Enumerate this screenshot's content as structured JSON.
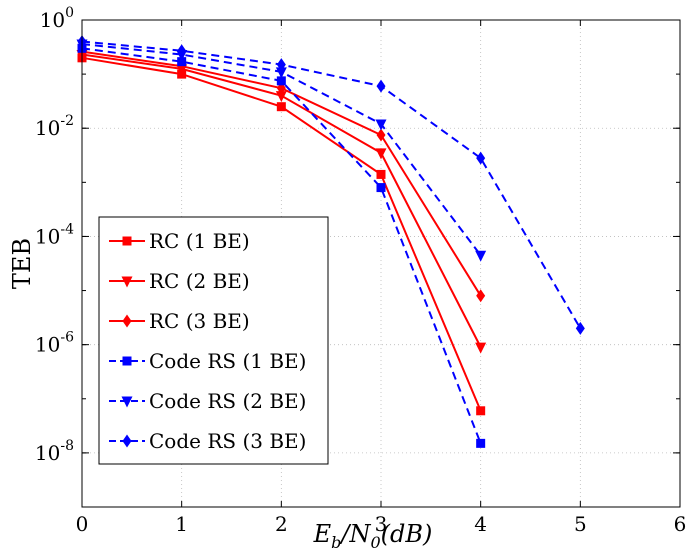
{
  "chart_data": {
    "type": "line",
    "xlabel": "E_b/N_0(dB)",
    "ylabel": "TEB",
    "x_scale": "linear",
    "y_scale": "log",
    "xlim": [
      0,
      6
    ],
    "ylim": [
      1e-09,
      1
    ],
    "x_ticks": [
      "0",
      "1",
      "2",
      "3",
      "4",
      "5",
      "6"
    ],
    "y_ticks": [
      {
        "base": "10",
        "exp": "0",
        "value": 1
      },
      {
        "base": "10",
        "exp": "-2",
        "value": 0.01
      },
      {
        "base": "10",
        "exp": "-4",
        "value": 0.0001
      },
      {
        "base": "10",
        "exp": "-6",
        "value": 1e-06
      },
      {
        "base": "10",
        "exp": "-8",
        "value": 1e-08
      }
    ],
    "grid": true,
    "legend_position": "lower-left",
    "series": [
      {
        "name": "RC (1 BE)",
        "color": "#ff0000",
        "marker": "square",
        "dash": "solid",
        "x": [
          0,
          1,
          2,
          3,
          4
        ],
        "y": [
          0.2,
          0.1,
          0.025,
          0.0014,
          6e-08
        ]
      },
      {
        "name": "RC (2 BE)",
        "color": "#ff0000",
        "marker": "triangle-down",
        "dash": "solid",
        "x": [
          0,
          1,
          2,
          3,
          4
        ],
        "y": [
          0.23,
          0.125,
          0.04,
          0.0035,
          9e-07
        ]
      },
      {
        "name": "RC (3 BE)",
        "color": "#ff0000",
        "marker": "diamond",
        "dash": "solid",
        "x": [
          0,
          1,
          2,
          3,
          4
        ],
        "y": [
          0.26,
          0.14,
          0.055,
          0.0075,
          8e-06
        ]
      },
      {
        "name": "Code RS (1 BE)",
        "color": "#0000ff",
        "marker": "square",
        "dash": "dashed",
        "x": [
          0,
          1,
          2,
          3,
          4
        ],
        "y": [
          0.3,
          0.17,
          0.075,
          0.0008,
          1.5e-08
        ]
      },
      {
        "name": "Code RS (2 BE)",
        "color": "#0000ff",
        "marker": "triangle-down",
        "dash": "dashed",
        "x": [
          0,
          1,
          2,
          3,
          4
        ],
        "y": [
          0.36,
          0.23,
          0.11,
          0.012,
          4.5e-05
        ]
      },
      {
        "name": "Code RS (3 BE)",
        "color": "#0000ff",
        "marker": "diamond",
        "dash": "dashed",
        "x": [
          0,
          1,
          2,
          3,
          4,
          5
        ],
        "y": [
          0.4,
          0.27,
          0.15,
          0.06,
          0.0028,
          2e-06
        ]
      }
    ]
  }
}
